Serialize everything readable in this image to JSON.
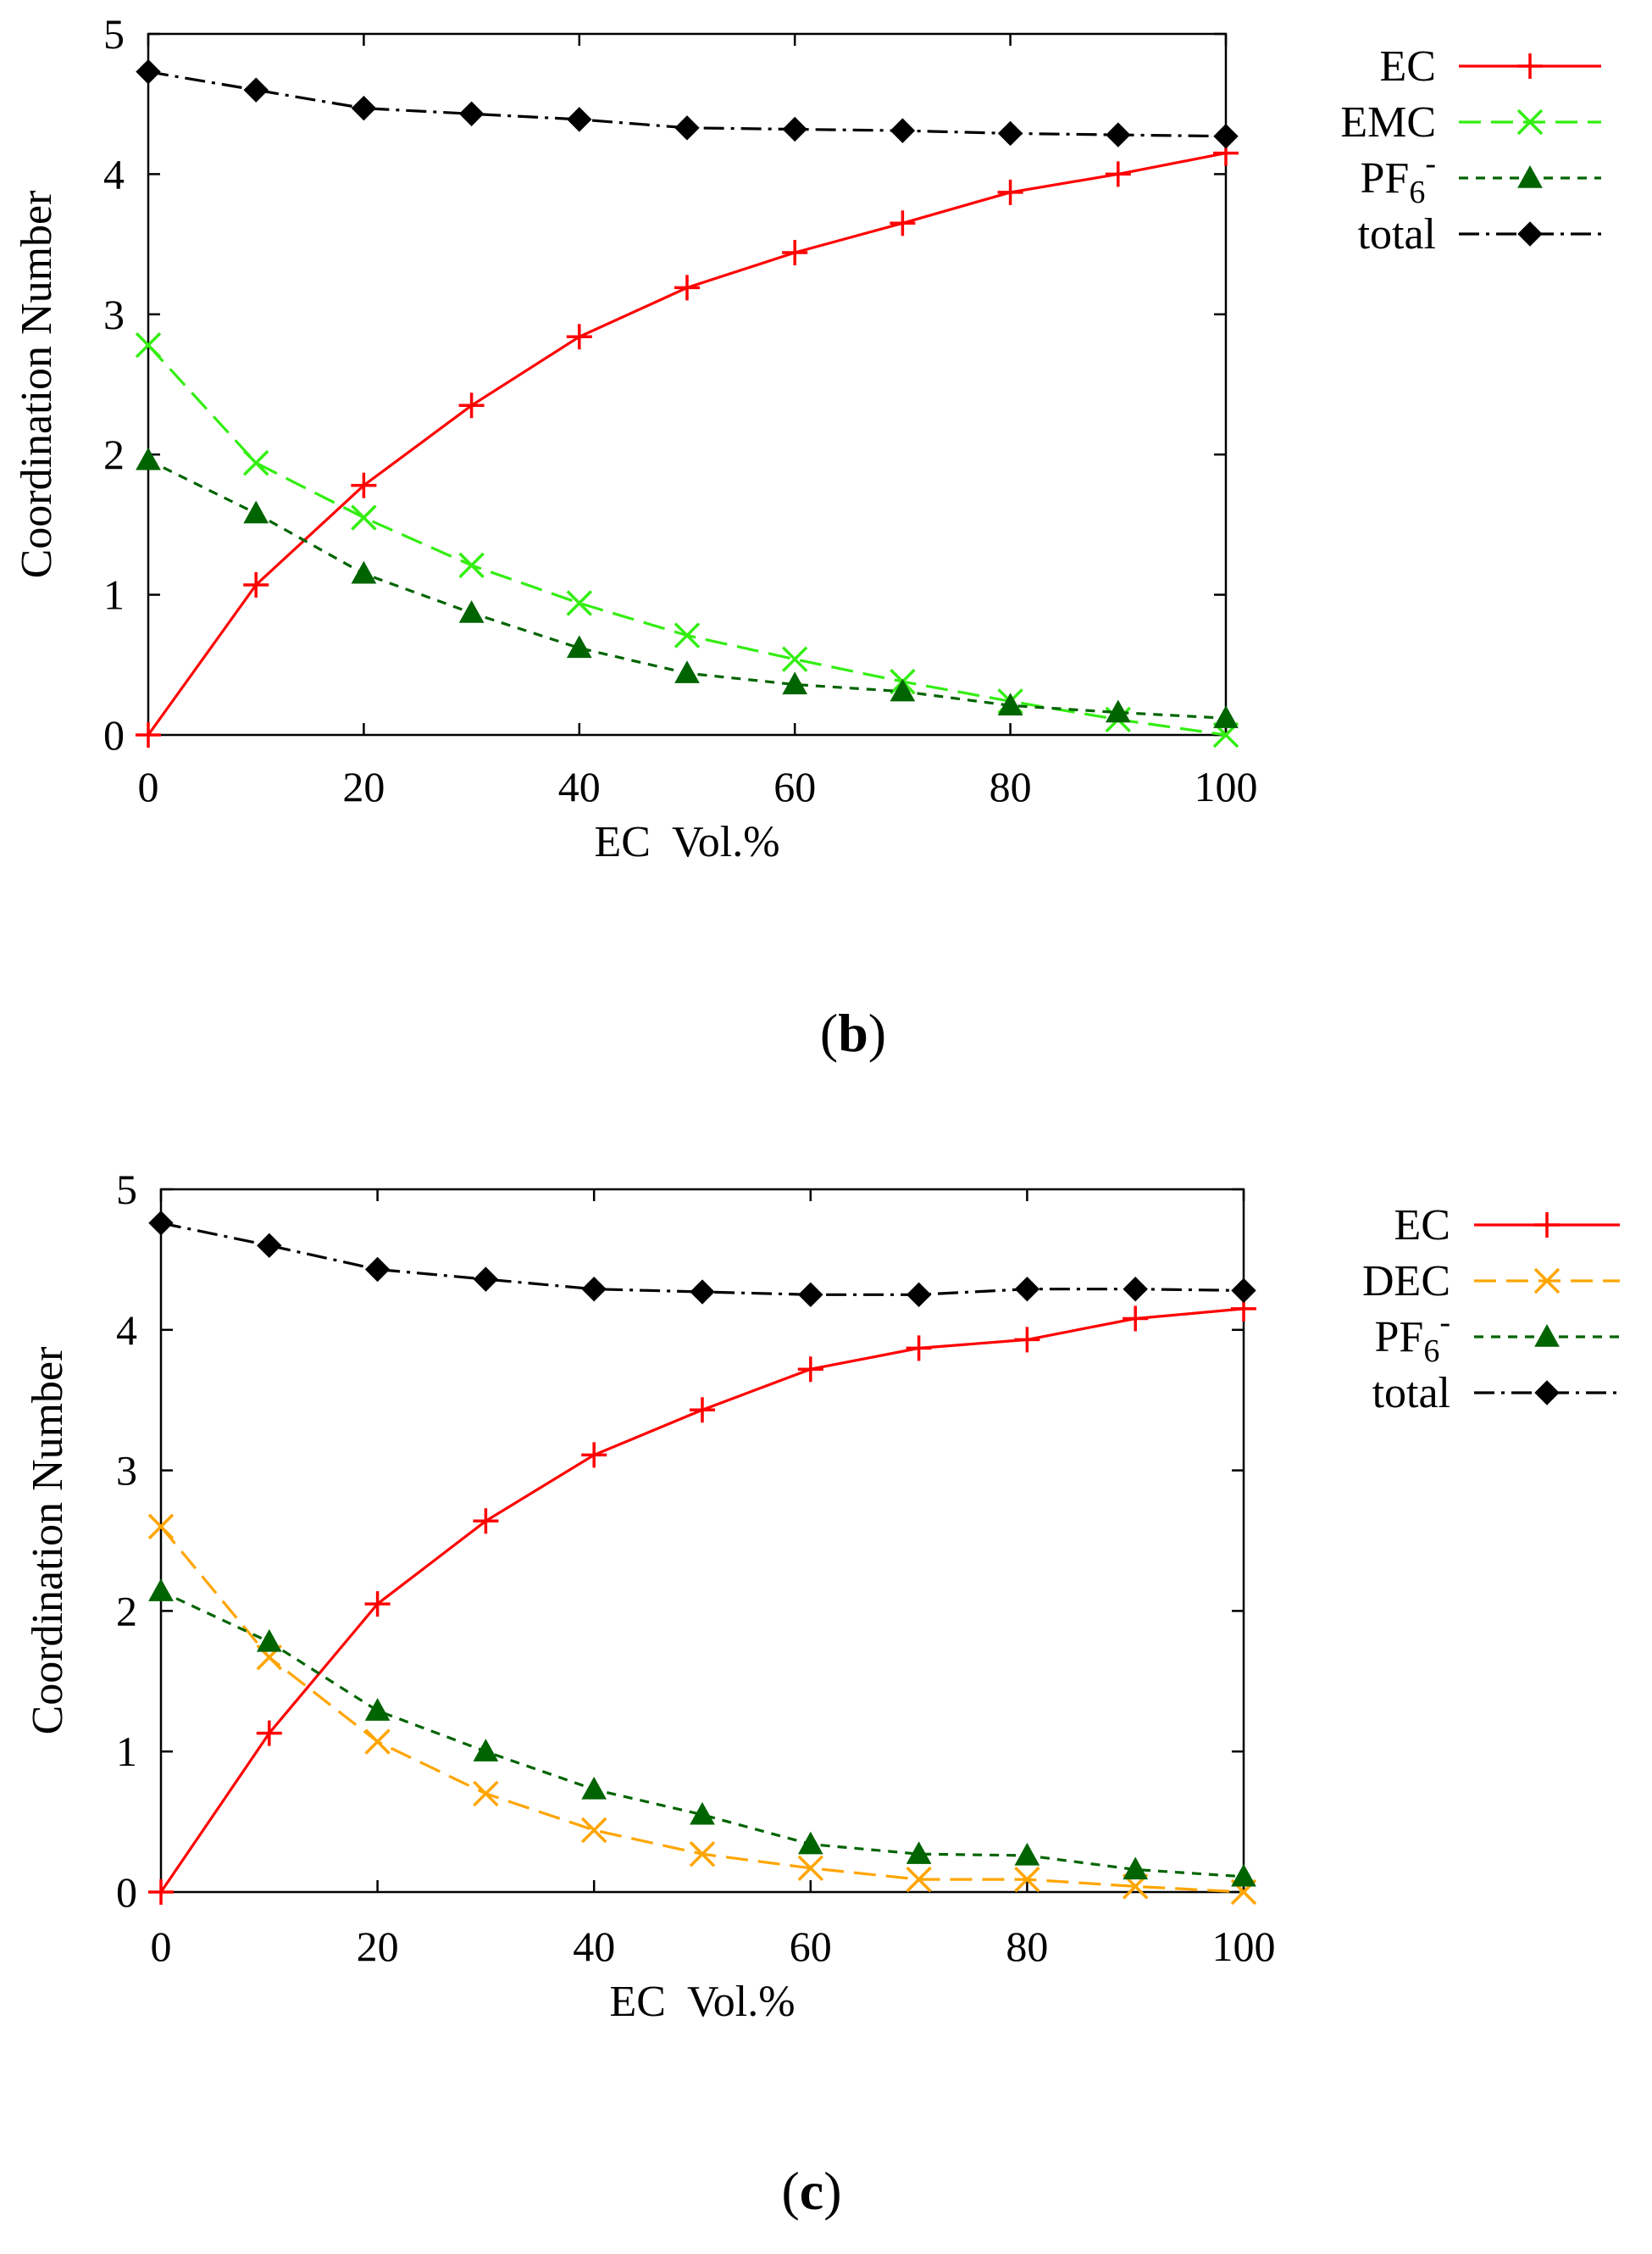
{
  "chart_data": [
    {
      "type": "line",
      "panel_label": "b",
      "xlabel": "EC  Vol.%",
      "ylabel": "Coordination Number",
      "xlim": [
        0,
        100
      ],
      "ylim": [
        0,
        5
      ],
      "xticks": [
        0,
        20,
        40,
        60,
        80,
        100
      ],
      "yticks": [
        0,
        1,
        2,
        3,
        4,
        5
      ],
      "grid": false,
      "legend_position": "top-right, outside plot",
      "x": [
        0,
        10,
        20,
        30,
        40,
        50,
        60,
        70,
        80,
        90,
        100
      ],
      "series": [
        {
          "name": "EC",
          "color": "#ff0000",
          "marker": "plus",
          "dash": "solid",
          "values": [
            0.0,
            1.07,
            1.78,
            2.35,
            2.84,
            3.19,
            3.44,
            3.65,
            3.87,
            4.0,
            4.15
          ]
        },
        {
          "name": "EMC",
          "color": "#33ee11",
          "marker": "x",
          "dash": "long-dash",
          "values": [
            2.78,
            1.94,
            1.55,
            1.21,
            0.94,
            0.71,
            0.54,
            0.38,
            0.24,
            0.11,
            0.0
          ]
        },
        {
          "name": "PF6-",
          "name_base": "PF",
          "name_sub": "6",
          "name_sup": "-",
          "color": "#006400",
          "marker": "triangle",
          "dash": "short-dash",
          "values": [
            1.96,
            1.58,
            1.15,
            0.87,
            0.62,
            0.44,
            0.36,
            0.31,
            0.21,
            0.16,
            0.12
          ]
        },
        {
          "name": "total",
          "color": "#000000",
          "marker": "diamond",
          "dash": "dash-dot",
          "values": [
            4.73,
            4.6,
            4.47,
            4.43,
            4.39,
            4.33,
            4.32,
            4.31,
            4.29,
            4.28,
            4.27
          ]
        }
      ]
    },
    {
      "type": "line",
      "panel_label": "c",
      "xlabel": "EC  Vol.%",
      "ylabel": "Coordination Number",
      "xlim": [
        0,
        100
      ],
      "ylim": [
        0,
        5
      ],
      "xticks": [
        0,
        20,
        40,
        60,
        80,
        100
      ],
      "yticks": [
        0,
        1,
        2,
        3,
        4,
        5
      ],
      "grid": false,
      "legend_position": "top-right, outside plot",
      "x": [
        0,
        10,
        20,
        30,
        40,
        50,
        60,
        70,
        80,
        90,
        100
      ],
      "series": [
        {
          "name": "EC",
          "color": "#ff0000",
          "marker": "plus",
          "dash": "solid",
          "values": [
            0.0,
            1.13,
            2.05,
            2.64,
            3.11,
            3.43,
            3.72,
            3.87,
            3.93,
            4.08,
            4.15
          ]
        },
        {
          "name": "DEC",
          "color": "#ffa500",
          "marker": "x",
          "dash": "long-dash",
          "values": [
            2.6,
            1.67,
            1.07,
            0.7,
            0.44,
            0.27,
            0.17,
            0.09,
            0.09,
            0.04,
            0.0
          ]
        },
        {
          "name": "PF6-",
          "name_base": "PF",
          "name_sub": "6",
          "name_sup": "-",
          "color": "#006400",
          "marker": "triangle",
          "dash": "short-dash",
          "values": [
            2.14,
            1.78,
            1.29,
            1.0,
            0.73,
            0.55,
            0.34,
            0.27,
            0.26,
            0.16,
            0.11
          ]
        },
        {
          "name": "total",
          "color": "#000000",
          "marker": "diamond",
          "dash": "dash-dot",
          "values": [
            4.76,
            4.6,
            4.43,
            4.36,
            4.29,
            4.27,
            4.25,
            4.25,
            4.29,
            4.29,
            4.28
          ]
        }
      ]
    }
  ]
}
